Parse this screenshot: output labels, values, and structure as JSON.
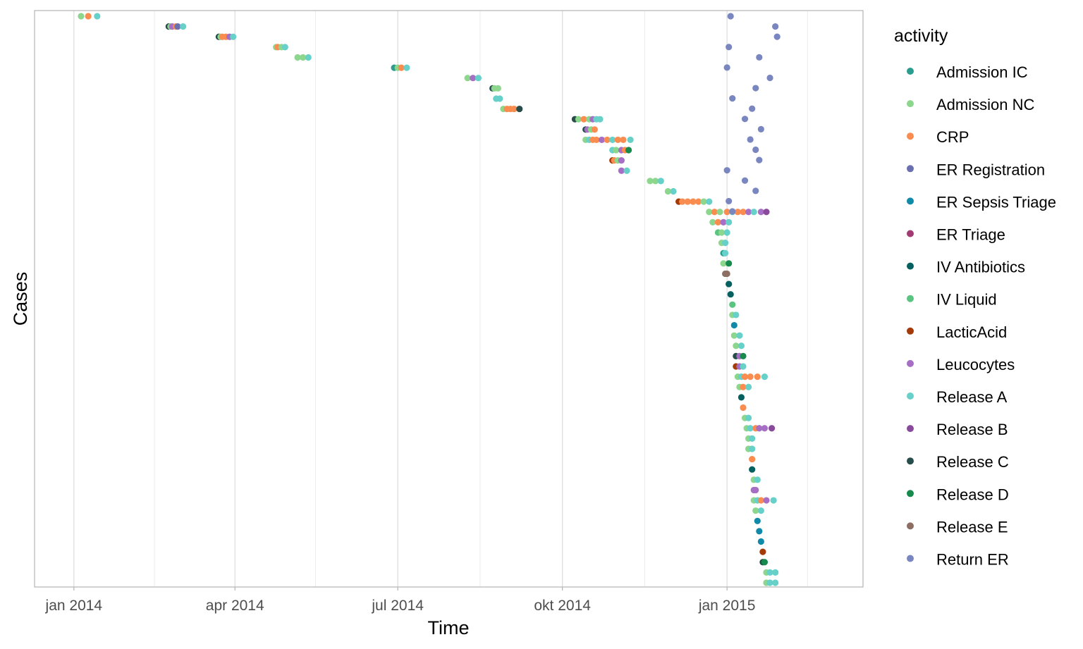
{
  "chart_data": {
    "type": "scatter",
    "title": "",
    "xlabel": "Time",
    "ylabel": "Cases",
    "x_type": "date",
    "xlim": [
      "2013-12-10",
      "2015-03-18"
    ],
    "y_scale": "case index, top to bottom",
    "y_ticks": [],
    "x_ticks": [
      "jan 2014",
      "apr 2014",
      "jul 2014",
      "okt 2014",
      "jan 2015"
    ],
    "x_tick_dates": [
      "2014-01-01",
      "2014-04-01",
      "2014-07-01",
      "2014-10-01",
      "2015-01-01"
    ],
    "minor_grid_dates": [
      "2014-02-15",
      "2014-05-16",
      "2014-08-16",
      "2014-11-16",
      "2015-02-15"
    ],
    "grid": true,
    "legend": {
      "title": "activity",
      "position": "right",
      "items": [
        {
          "label": "Admission IC",
          "color": "#2a9d8f"
        },
        {
          "label": "Admission NC",
          "color": "#8dd68d"
        },
        {
          "label": "CRP",
          "color": "#fb8c4f"
        },
        {
          "label": "ER Registration",
          "color": "#6a6fb0"
        },
        {
          "label": "ER Sepsis Triage",
          "color": "#108aa8"
        },
        {
          "label": "ER Triage",
          "color": "#a23b72"
        },
        {
          "label": "IV Antibiotics",
          "color": "#05615f"
        },
        {
          "label": "IV Liquid",
          "color": "#5bc480"
        },
        {
          "label": "LacticAcid",
          "color": "#a33a08"
        },
        {
          "label": "Leucocytes",
          "color": "#a66ec4"
        },
        {
          "label": "Release A",
          "color": "#66d0c9"
        },
        {
          "label": "Release B",
          "color": "#8a4a9c"
        },
        {
          "label": "Release C",
          "color": "#264d4a"
        },
        {
          "label": "Release D",
          "color": "#178a4d"
        },
        {
          "label": "Release E",
          "color": "#8d6e63"
        },
        {
          "label": "Return ER",
          "color": "#7a86c0"
        }
      ]
    },
    "series": [
      {
        "case": 1,
        "points": [
          [
            "2014-01-05",
            "Admission NC"
          ],
          [
            "2014-01-09",
            "CRP"
          ],
          [
            "2014-01-14",
            "Release A"
          ]
        ]
      },
      {
        "case": 2,
        "points": [
          [
            "2014-02-23",
            "Release C"
          ],
          [
            "2014-02-24",
            "Admission NC"
          ],
          [
            "2014-02-25",
            "Leucocytes"
          ],
          [
            "2014-02-27",
            "CRP"
          ],
          [
            "2014-02-28",
            "ER Registration"
          ],
          [
            "2014-03-03",
            "Release A"
          ]
        ]
      },
      {
        "case": 3,
        "points": [
          [
            "2014-03-23",
            "Release C"
          ],
          [
            "2014-03-24",
            "Admission NC"
          ],
          [
            "2014-03-25",
            "CRP"
          ],
          [
            "2014-03-27",
            "CRP"
          ],
          [
            "2014-03-29",
            "Leucocytes"
          ],
          [
            "2014-03-31",
            "Release A"
          ]
        ]
      },
      {
        "case": 4,
        "points": [
          [
            "2014-04-24",
            "Admission NC"
          ],
          [
            "2014-04-25",
            "CRP"
          ],
          [
            "2014-04-27",
            "Admission NC"
          ],
          [
            "2014-04-29",
            "Release A"
          ]
        ]
      },
      {
        "case": 5,
        "points": [
          [
            "2014-05-06",
            "Admission NC"
          ],
          [
            "2014-05-09",
            "Admission NC"
          ],
          [
            "2014-05-12",
            "Release A"
          ]
        ]
      },
      {
        "case": 6,
        "points": [
          [
            "2014-06-29",
            "Admission IC"
          ],
          [
            "2014-07-01",
            "Admission NC"
          ],
          [
            "2014-07-03",
            "CRP"
          ],
          [
            "2014-07-06",
            "Release A"
          ]
        ]
      },
      {
        "case": 7,
        "points": [
          [
            "2014-08-09",
            "Admission NC"
          ],
          [
            "2014-08-12",
            "Leucocytes"
          ],
          [
            "2014-08-15",
            "Release A"
          ]
        ]
      },
      {
        "case": 8,
        "points": [
          [
            "2014-08-23",
            "Release C"
          ],
          [
            "2014-08-24",
            "Admission NC"
          ],
          [
            "2014-08-26",
            "Admission NC"
          ]
        ]
      },
      {
        "case": 9,
        "points": [
          [
            "2014-08-25",
            "Release A"
          ],
          [
            "2014-08-27",
            "Release A"
          ]
        ]
      },
      {
        "case": 10,
        "points": [
          [
            "2014-08-29",
            "Admission NC"
          ],
          [
            "2014-08-31",
            "CRP"
          ],
          [
            "2014-09-02",
            "CRP"
          ],
          [
            "2014-09-04",
            "CRP"
          ],
          [
            "2014-09-07",
            "Release C"
          ]
        ]
      },
      {
        "case": 11,
        "points": [
          [
            "2014-10-08",
            "Release C"
          ],
          [
            "2014-10-10",
            "Admission NC"
          ],
          [
            "2014-10-13",
            "CRP"
          ],
          [
            "2014-10-16",
            "Admission NC"
          ],
          [
            "2014-10-18",
            "Leucocytes"
          ],
          [
            "2014-10-20",
            "Release A"
          ],
          [
            "2014-10-22",
            "Release A"
          ]
        ]
      },
      {
        "case": 12,
        "points": [
          [
            "2014-10-14",
            "Release C"
          ],
          [
            "2014-10-15",
            "Leucocytes"
          ],
          [
            "2014-10-17",
            "Admission NC"
          ],
          [
            "2014-10-19",
            "CRP"
          ]
        ]
      },
      {
        "case": 13,
        "points": [
          [
            "2014-10-14",
            "Admission NC"
          ],
          [
            "2014-10-16",
            "Release A"
          ],
          [
            "2014-10-18",
            "CRP"
          ],
          [
            "2014-10-20",
            "CRP"
          ],
          [
            "2014-10-23",
            "Leucocytes"
          ],
          [
            "2014-10-26",
            "CRP"
          ],
          [
            "2014-10-29",
            "Release A"
          ],
          [
            "2014-11-01",
            "CRP"
          ],
          [
            "2014-11-04",
            "CRP"
          ],
          [
            "2014-11-08",
            "Release A"
          ]
        ]
      },
      {
        "case": 14,
        "points": [
          [
            "2014-10-29",
            "Release A"
          ],
          [
            "2014-10-31",
            "Admission NC"
          ],
          [
            "2014-11-03",
            "Leucocytes"
          ],
          [
            "2014-11-05",
            "CRP"
          ],
          [
            "2014-11-07",
            "Release D"
          ]
        ]
      },
      {
        "case": 15,
        "points": [
          [
            "2014-10-29",
            "LacticAcid"
          ],
          [
            "2014-10-30",
            "CRP"
          ],
          [
            "2014-11-01",
            "Admission NC"
          ],
          [
            "2014-11-03",
            "Leucocytes"
          ]
        ]
      },
      {
        "case": 16,
        "points": [
          [
            "2014-11-03",
            "Leucocytes"
          ],
          [
            "2014-11-06",
            "Release A"
          ]
        ]
      },
      {
        "case": 17,
        "points": [
          [
            "2014-11-19",
            "Admission NC"
          ],
          [
            "2014-11-22",
            "Admission NC"
          ],
          [
            "2014-11-25",
            "Release A"
          ]
        ]
      },
      {
        "case": 18,
        "points": [
          [
            "2014-11-29",
            "Admission NC"
          ],
          [
            "2014-12-02",
            "Release A"
          ]
        ]
      },
      {
        "case": 19,
        "points": [
          [
            "2014-12-05",
            "LacticAcid"
          ],
          [
            "2014-12-07",
            "CRP"
          ],
          [
            "2014-12-10",
            "CRP"
          ],
          [
            "2014-12-13",
            "CRP"
          ],
          [
            "2014-12-16",
            "CRP"
          ],
          [
            "2014-12-19",
            "Admission NC"
          ],
          [
            "2014-12-22",
            "Release A"
          ]
        ]
      },
      {
        "case": 20,
        "points": [
          [
            "2014-12-22",
            "Admission NC"
          ],
          [
            "2014-12-25",
            "CRP"
          ],
          [
            "2014-12-28",
            "Admission NC"
          ],
          [
            "2015-01-01",
            "CRP"
          ],
          [
            "2015-01-04",
            "Release A"
          ],
          [
            "2015-01-07",
            "CRP"
          ],
          [
            "2015-01-10",
            "CRP"
          ],
          [
            "2015-01-13",
            "Leucocytes"
          ],
          [
            "2015-01-16",
            "Release A"
          ],
          [
            "2015-01-20",
            "Leucocytes"
          ],
          [
            "2015-01-23",
            "Release B"
          ]
        ]
      },
      {
        "case": 21,
        "points": [
          [
            "2014-12-24",
            "Admission NC"
          ],
          [
            "2014-12-27",
            "CRP"
          ],
          [
            "2014-12-30",
            "Leucocytes"
          ],
          [
            "2015-01-02",
            "Release A"
          ]
        ]
      },
      {
        "case": 22,
        "points": [
          [
            "2014-12-27",
            "IV Liquid"
          ],
          [
            "2014-12-29",
            "Admission NC"
          ],
          [
            "2015-01-01",
            "Release A"
          ]
        ]
      },
      {
        "case": 23,
        "points": [
          [
            "2014-12-29",
            "Admission NC"
          ],
          [
            "2014-12-31",
            "Release A"
          ]
        ]
      },
      {
        "case": 24,
        "points": [
          [
            "2014-12-30",
            "Admission IC"
          ],
          [
            "2014-12-31",
            "Release A"
          ]
        ]
      },
      {
        "case": 25,
        "points": [
          [
            "2014-12-30",
            "Admission NC"
          ],
          [
            "2015-01-02",
            "Release D"
          ]
        ]
      },
      {
        "case": 26,
        "points": [
          [
            "2014-12-31",
            "Release E"
          ],
          [
            "2015-01-01",
            "Release E"
          ]
        ]
      },
      {
        "case": 27,
        "points": [
          [
            "2015-01-02",
            "IV Antibiotics"
          ]
        ]
      },
      {
        "case": 28,
        "points": [
          [
            "2015-01-03",
            "IV Antibiotics"
          ]
        ]
      },
      {
        "case": 29,
        "points": [
          [
            "2015-01-04",
            "IV Liquid"
          ]
        ]
      },
      {
        "case": 30,
        "points": [
          [
            "2015-01-04",
            "Admission NC"
          ],
          [
            "2015-01-06",
            "Release A"
          ]
        ]
      },
      {
        "case": 31,
        "points": [
          [
            "2015-01-05",
            "ER Sepsis Triage"
          ]
        ]
      },
      {
        "case": 32,
        "points": [
          [
            "2015-01-05",
            "Admission NC"
          ],
          [
            "2015-01-08",
            "Release A"
          ]
        ]
      },
      {
        "case": 33,
        "points": [
          [
            "2015-01-06",
            "Admission NC"
          ],
          [
            "2015-01-09",
            "Release A"
          ]
        ]
      },
      {
        "case": 34,
        "points": [
          [
            "2015-01-06",
            "Release C"
          ],
          [
            "2015-01-08",
            "Leucocytes"
          ],
          [
            "2015-01-10",
            "Release D"
          ]
        ]
      },
      {
        "case": 35,
        "points": [
          [
            "2015-01-06",
            "LacticAcid"
          ],
          [
            "2015-01-08",
            "Leucocytes"
          ],
          [
            "2015-01-10",
            "Release A"
          ]
        ]
      },
      {
        "case": 36,
        "points": [
          [
            "2015-01-07",
            "Admission NC"
          ],
          [
            "2015-01-09",
            "Release A"
          ],
          [
            "2015-01-11",
            "CRP"
          ],
          [
            "2015-01-14",
            "CRP"
          ],
          [
            "2015-01-18",
            "CRP"
          ],
          [
            "2015-01-22",
            "Release A"
          ]
        ]
      },
      {
        "case": 37,
        "points": [
          [
            "2015-01-08",
            "Admission NC"
          ],
          [
            "2015-01-10",
            "CRP"
          ],
          [
            "2015-01-13",
            "Release A"
          ]
        ]
      },
      {
        "case": 38,
        "points": [
          [
            "2015-01-09",
            "IV Antibiotics"
          ]
        ]
      },
      {
        "case": 39,
        "points": [
          [
            "2015-01-10",
            "CRP"
          ]
        ]
      },
      {
        "case": 40,
        "points": [
          [
            "2015-01-11",
            "Admission NC"
          ],
          [
            "2015-01-13",
            "Release A"
          ]
        ]
      },
      {
        "case": 41,
        "points": [
          [
            "2015-01-12",
            "Admission NC"
          ],
          [
            "2015-01-14",
            "Release A"
          ],
          [
            "2015-01-17",
            "CRP"
          ],
          [
            "2015-01-19",
            "Leucocytes"
          ],
          [
            "2015-01-22",
            "Leucocytes"
          ],
          [
            "2015-01-26",
            "Release B"
          ]
        ]
      },
      {
        "case": 42,
        "points": [
          [
            "2015-01-13",
            "Admission NC"
          ],
          [
            "2015-01-15",
            "Release A"
          ]
        ]
      },
      {
        "case": 43,
        "points": [
          [
            "2015-01-13",
            "Admission NC"
          ],
          [
            "2015-01-15",
            "Release A"
          ]
        ]
      },
      {
        "case": 44,
        "points": [
          [
            "2015-01-15",
            "CRP"
          ]
        ]
      },
      {
        "case": 45,
        "points": [
          [
            "2015-01-15",
            "IV Antibiotics"
          ]
        ]
      },
      {
        "case": 46,
        "points": [
          [
            "2015-01-16",
            "Admission NC"
          ],
          [
            "2015-01-18",
            "Release A"
          ]
        ]
      },
      {
        "case": 47,
        "points": [
          [
            "2015-01-16",
            "Leucocytes"
          ],
          [
            "2015-01-17",
            "Leucocytes"
          ]
        ]
      },
      {
        "case": 48,
        "points": [
          [
            "2015-01-16",
            "Admission NC"
          ],
          [
            "2015-01-18",
            "Release A"
          ],
          [
            "2015-01-20",
            "CRP"
          ],
          [
            "2015-01-23",
            "Leucocytes"
          ],
          [
            "2015-01-27",
            "Release A"
          ]
        ]
      },
      {
        "case": 49,
        "points": [
          [
            "2015-01-17",
            "Admission NC"
          ],
          [
            "2015-01-20",
            "Release A"
          ]
        ]
      },
      {
        "case": 50,
        "points": [
          [
            "2015-01-18",
            "ER Sepsis Triage"
          ]
        ]
      },
      {
        "case": 51,
        "points": [
          [
            "2015-01-19",
            "ER Sepsis Triage"
          ]
        ]
      },
      {
        "case": 52,
        "points": [
          [
            "2015-01-20",
            "ER Sepsis Triage"
          ]
        ]
      },
      {
        "case": 53,
        "points": [
          [
            "2015-01-21",
            "LacticAcid"
          ]
        ]
      },
      {
        "case": 54,
        "points": [
          [
            "2015-01-21",
            "Release C"
          ],
          [
            "2015-01-22",
            "Release D"
          ]
        ]
      },
      {
        "case": 55,
        "points": [
          [
            "2015-01-23",
            "Admission NC"
          ],
          [
            "2015-01-25",
            "Release A"
          ],
          [
            "2015-01-28",
            "Release A"
          ]
        ]
      },
      {
        "case": 56,
        "points": [
          [
            "2015-01-23",
            "Admission NC"
          ],
          [
            "2015-01-25",
            "Release A"
          ],
          [
            "2015-01-28",
            "Release A"
          ]
        ]
      }
    ],
    "return_er": [
      "2015-01-03",
      "2015-01-28",
      "2015-01-29",
      "2015-01-02",
      "2015-01-19",
      "2015-01-01",
      "2015-01-25",
      "2015-01-17",
      "2015-01-04",
      "2015-01-15",
      "2015-01-11",
      "2015-01-20",
      "2015-01-14",
      "2015-01-17",
      "2015-01-19",
      "2015-01-01",
      "2015-01-11",
      "2015-01-17",
      "2015-01-02",
      "2015-01-04"
    ]
  }
}
